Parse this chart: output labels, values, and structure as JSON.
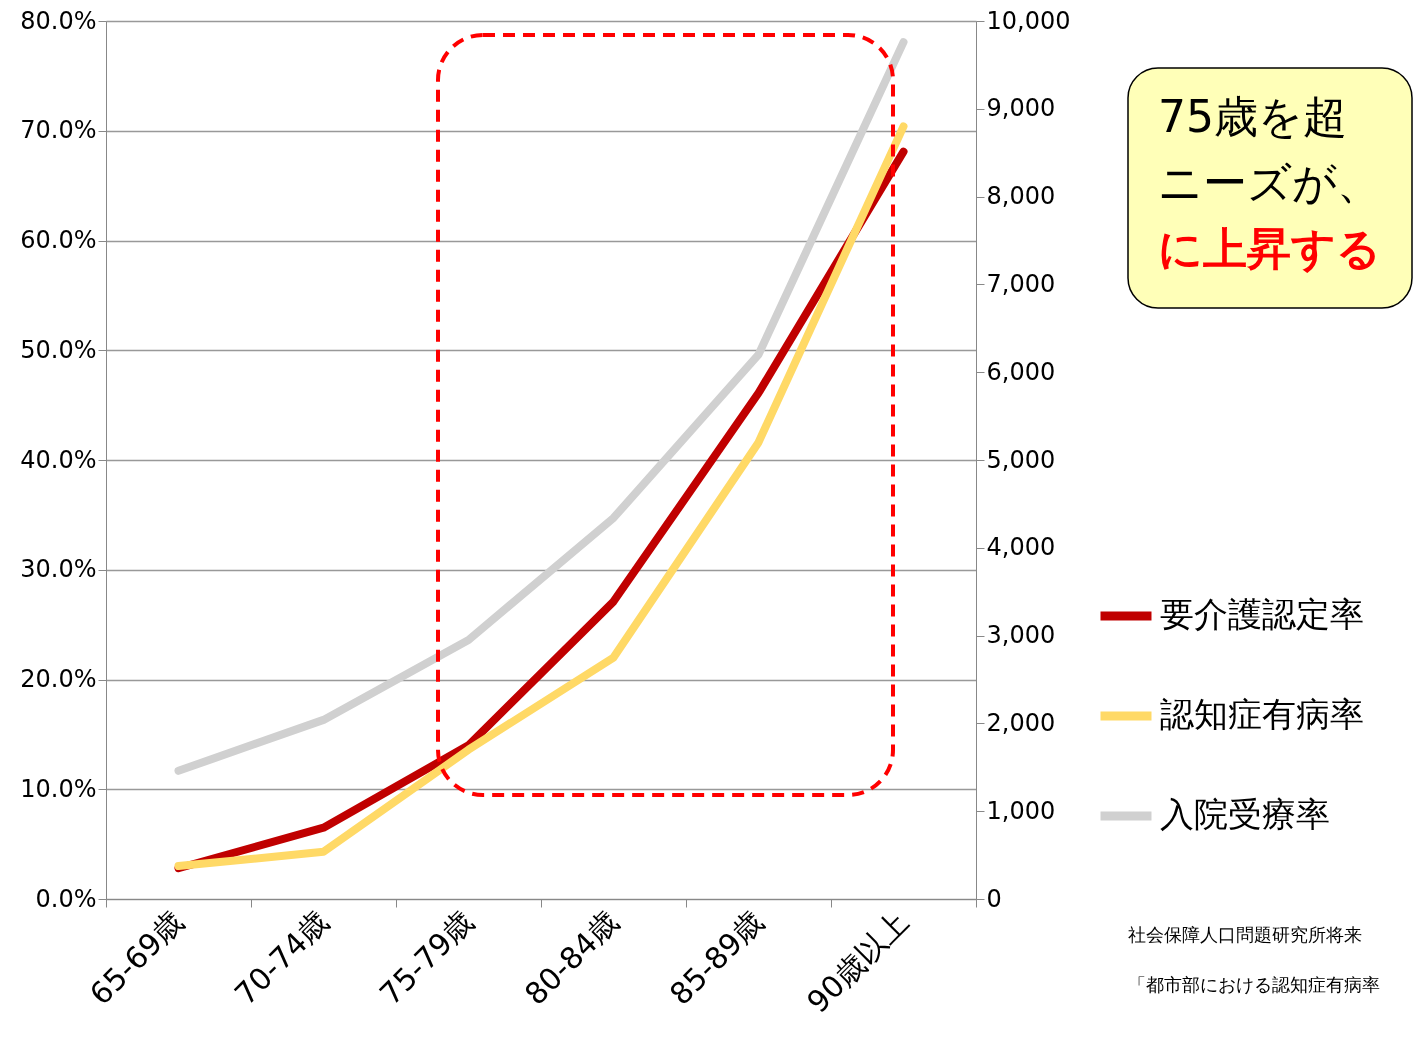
{
  "chart_data": {
    "type": "line",
    "categories": [
      "65-69歳",
      "70-74歳",
      "75-79歳",
      "80-84歳",
      "85-89歳",
      "90歳以上"
    ],
    "series": [
      {
        "name": "要介護認定率",
        "color": "#c00000",
        "values": [
          2.8,
          6.5,
          14.0,
          27.1,
          46.1,
          68.1
        ]
      },
      {
        "name": "認知症有病率",
        "color": "#ffd966",
        "values": [
          3.0,
          4.3,
          13.6,
          22.0,
          41.6,
          70.4
        ]
      },
      {
        "name": "入院受療率",
        "color": "#d0d0d0",
        "axis": "y2",
        "values": [
          1460,
          2040,
          2950,
          4340,
          6200,
          9760
        ]
      }
    ],
    "ylim": [
      0,
      80
    ],
    "yticks": [
      {
        "value": 0,
        "label": "0.0%"
      },
      {
        "value": 10,
        "label": "10.0%"
      },
      {
        "value": 20,
        "label": "20.0%"
      },
      {
        "value": 30,
        "label": "30.0%"
      },
      {
        "value": 40,
        "label": "40.0%"
      },
      {
        "value": 50,
        "label": "50.0%"
      },
      {
        "value": 60,
        "label": "60.0%"
      },
      {
        "value": 70,
        "label": "70.0%"
      },
      {
        "value": 80,
        "label": "80.0%"
      }
    ],
    "y2lim": [
      0,
      10000
    ],
    "y2ticks": [
      0,
      {
        "value": 1000,
        "label": "1,000"
      },
      {
        "value": 2000,
        "label": "2,000"
      },
      {
        "value": 3000,
        "label": "3,000"
      },
      {
        "value": 4000,
        "label": "4,000"
      },
      {
        "value": 5000,
        "label": "5,000"
      },
      {
        "value": 6000,
        "label": "6,000"
      },
      {
        "value": 7000,
        "label": "7,000"
      },
      {
        "value": 8000,
        "label": "8,000"
      },
      {
        "value": 9000,
        "label": "9,000"
      },
      {
        "value": 10000,
        "label": "10,000"
      }
    ],
    "grid": "y",
    "legend": "right",
    "marker": "none",
    "line_style": "solid",
    "annotations": [
      "75歳を超",
      "ニーズが、",
      "に上昇する",
      "社会保障人口問題研究所将来",
      "「都市部における認知症有病率"
    ]
  }
}
